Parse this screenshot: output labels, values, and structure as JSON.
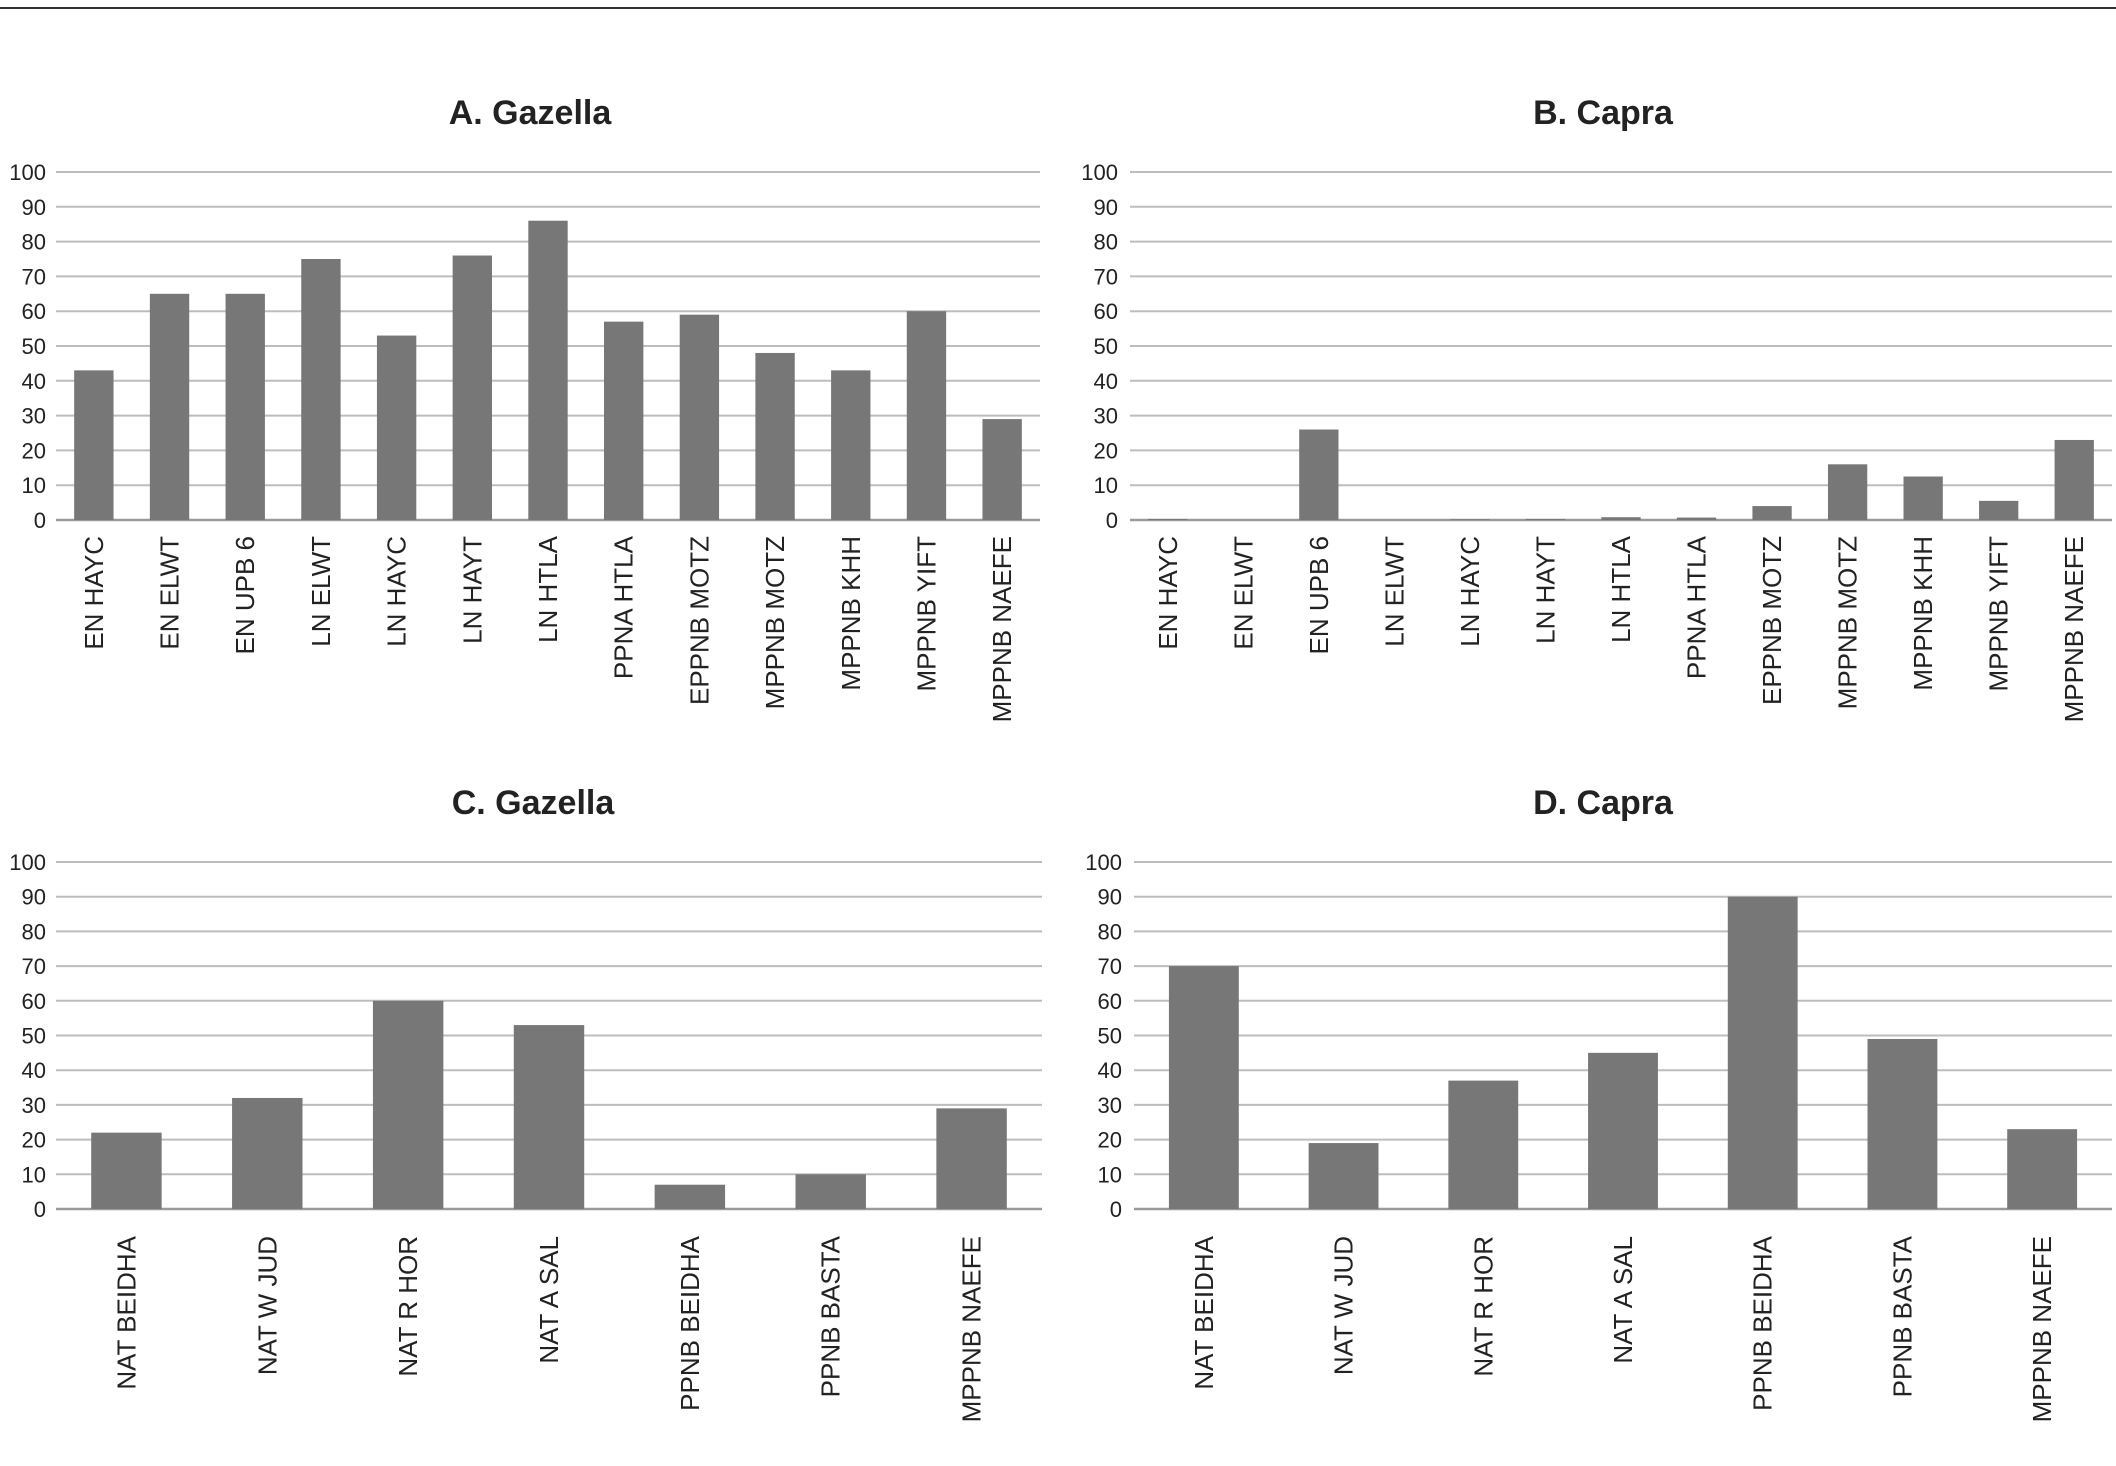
{
  "colors": {
    "bar": "#777777",
    "grid": "#bdbdbd",
    "axis": "#9a9a9a",
    "text": "#222222"
  },
  "chart_data": [
    {
      "panel": "A",
      "type": "bar",
      "title": "A. Gazella",
      "categories": [
        "EN HAYC",
        "EN ELWT",
        "EN UPB 6",
        "LN ELWT",
        "LN HAYC",
        "LN HAYT",
        "LN HTLA",
        "PPNA HTLA",
        "EPPNB MOTZ",
        "MPPNB MOTZ",
        "MPPNB KHH",
        "MPPNB YIFT",
        "MPPNB NAEFE"
      ],
      "values": [
        43,
        65,
        65,
        75,
        53,
        76,
        86,
        57,
        59,
        48,
        43,
        60,
        29
      ],
      "yticks": [
        "0",
        "10",
        "20",
        "30",
        "40",
        "50",
        "60",
        "70",
        "80",
        "90",
        "100"
      ],
      "ylim": [
        0,
        100
      ],
      "xlabel": "",
      "ylabel": "",
      "grid": true,
      "legend": "none"
    },
    {
      "panel": "B",
      "type": "bar",
      "title": "B. Capra",
      "categories": [
        "EN HAYC",
        "EN ELWT",
        "EN UPB 6",
        "LN ELWT",
        "LN HAYC",
        "LN HAYT",
        "LN HTLA",
        "PPNA HTLA",
        "EPPNB MOTZ",
        "MPPNB MOTZ",
        "MPPNB KHH",
        "MPPNB YIFT",
        "MPPNB NAEFE"
      ],
      "values": [
        0.3,
        0,
        26,
        0,
        0.2,
        0.3,
        0.8,
        0.7,
        4,
        16,
        12.5,
        5.5,
        23
      ],
      "yticks": [
        "0",
        "10",
        "20",
        "30",
        "40",
        "50",
        "60",
        "70",
        "80",
        "90",
        "100"
      ],
      "ylim": [
        0,
        100
      ],
      "xlabel": "",
      "ylabel": "",
      "grid": true,
      "legend": "none"
    },
    {
      "panel": "C",
      "type": "bar",
      "title": "C. Gazella",
      "categories": [
        "NAT BEIDHA",
        "NAT W JUD",
        "NAT R HOR",
        "NAT A SAL",
        "PPNB BEIDHA",
        "PPNB BASTA",
        "MPPNB NAEFE"
      ],
      "values": [
        22,
        32,
        60,
        53,
        7,
        10,
        29
      ],
      "yticks": [
        "0",
        "10",
        "20",
        "30",
        "40",
        "50",
        "60",
        "70",
        "80",
        "90",
        "100"
      ],
      "ylim": [
        0,
        100
      ],
      "xlabel": "",
      "ylabel": "",
      "grid": true,
      "legend": "none"
    },
    {
      "panel": "D",
      "type": "bar",
      "title": "D. Capra",
      "categories": [
        "NAT BEIDHA",
        "NAT W JUD",
        "NAT R HOR",
        "NAT A SAL",
        "PPNB BEIDHA",
        "PPNB BASTA",
        "MPPNB NAEFE"
      ],
      "values": [
        70,
        19,
        37,
        45,
        90,
        49,
        23
      ],
      "yticks": [
        "0",
        "10",
        "20",
        "30",
        "40",
        "50",
        "60",
        "70",
        "80",
        "90",
        "100"
      ],
      "ylim": [
        0,
        100
      ],
      "xlabel": "",
      "ylabel": "",
      "grid": true,
      "legend": "none"
    }
  ]
}
